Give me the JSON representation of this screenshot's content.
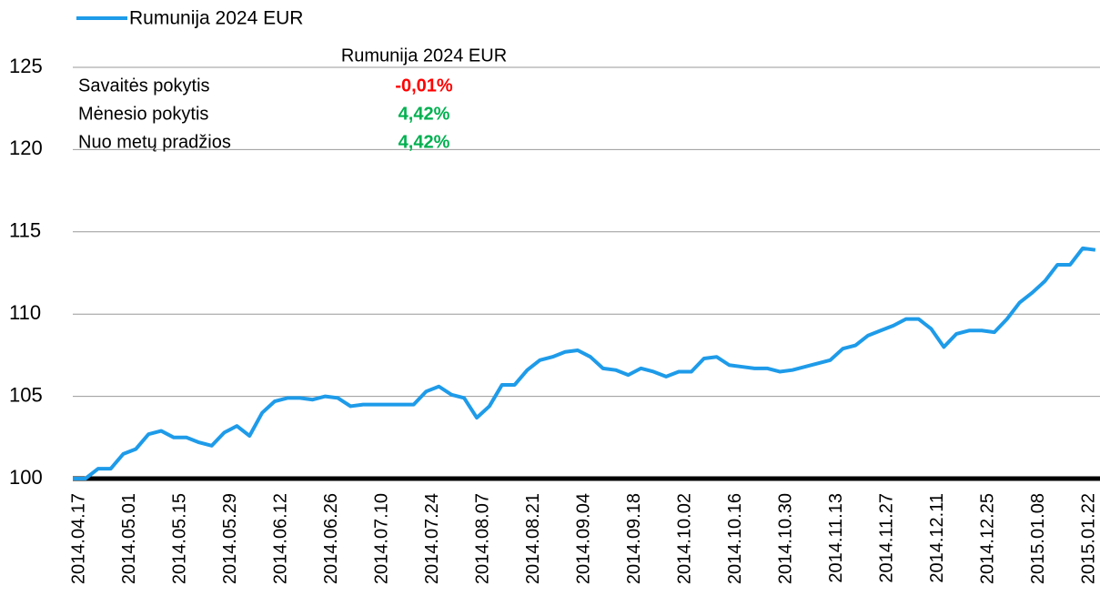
{
  "chart_data": {
    "type": "line",
    "categories": [
      "2014.04.17",
      null,
      null,
      null,
      "2014.05.01",
      null,
      null,
      null,
      "2014.05.15",
      null,
      null,
      null,
      "2014.05.29",
      null,
      null,
      null,
      "2014.06.12",
      null,
      null,
      null,
      "2014.06.26",
      null,
      null,
      null,
      "2014.07.10",
      null,
      null,
      null,
      "2014.07.24",
      null,
      null,
      null,
      "2014.08.07",
      null,
      null,
      null,
      "2014.08.21",
      null,
      null,
      null,
      "2014.09.04",
      null,
      null,
      null,
      "2014.09.18",
      null,
      null,
      null,
      "2014.10.02",
      null,
      null,
      null,
      "2014.10.16",
      null,
      null,
      null,
      "2014.10.30",
      null,
      null,
      null,
      "2014.11.13",
      null,
      null,
      null,
      "2014.11.27",
      null,
      null,
      null,
      "2014.12.11",
      null,
      null,
      null,
      "2014.12.25",
      null,
      null,
      null,
      "2015.01.08",
      null,
      null,
      null,
      "2015.01.22",
      null
    ],
    "series": [
      {
        "name": "Rumunija 2024 EUR",
        "color": "#1e9be9",
        "values": [
          100.0,
          100.0,
          100.6,
          100.6,
          101.5,
          101.8,
          102.7,
          102.9,
          102.5,
          102.5,
          102.2,
          102.0,
          102.8,
          103.2,
          102.6,
          104.0,
          104.7,
          104.9,
          104.9,
          104.8,
          105.0,
          104.9,
          104.4,
          104.5,
          104.5,
          104.5,
          104.5,
          104.5,
          105.3,
          105.6,
          105.1,
          104.9,
          103.7,
          104.4,
          105.7,
          105.7,
          106.6,
          107.2,
          107.4,
          107.7,
          107.8,
          107.4,
          106.7,
          106.6,
          106.3,
          106.7,
          106.5,
          106.2,
          106.5,
          106.5,
          107.3,
          107.4,
          106.9,
          106.8,
          106.7,
          106.7,
          106.5,
          106.6,
          106.8,
          107.0,
          107.2,
          107.9,
          108.1,
          108.7,
          109.0,
          109.3,
          109.7,
          109.7,
          109.1,
          108.0,
          108.8,
          109.0,
          109.0,
          108.9,
          109.7,
          110.7,
          111.3,
          112.0,
          113.0,
          113.0,
          114.0,
          113.9
        ]
      }
    ],
    "ylim": [
      100,
      125
    ],
    "yticks": [
      100,
      105,
      110,
      115,
      120,
      125
    ],
    "grid": true,
    "legend": "top-left",
    "table": {
      "header": "Rumunija 2024 EUR",
      "rows": [
        {
          "label": "Savaitės pokytis",
          "value": "-0,01%",
          "color": "#ff0000"
        },
        {
          "label": "Mėnesio pokytis",
          "value": "4,42%",
          "color": "#00b050"
        },
        {
          "label": "Nuo metų pradžios",
          "value": "4,42%",
          "color": "#00b050"
        }
      ]
    }
  }
}
